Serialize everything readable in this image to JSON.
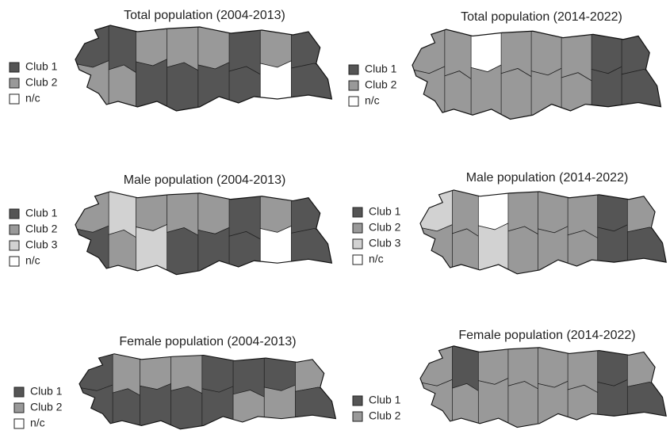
{
  "panels": [
    {
      "title": "Total population (2004-2013)",
      "legend": [
        "Club 1",
        "Club 2",
        "n/c"
      ]
    },
    {
      "title": "Total population (2014-2022)",
      "legend": [
        "Club 1",
        "Club 2",
        "n/c"
      ]
    },
    {
      "title": "Male population (2004-2013)",
      "legend": [
        "Club 1",
        "Club 2",
        "Club 3",
        "n/c"
      ]
    },
    {
      "title": "Male population (2014-2022)",
      "legend": [
        "Club 1",
        "Club 2",
        "Club 3",
        "n/c"
      ]
    },
    {
      "title": "Female population (2004-2013)",
      "legend": [
        "Club 1",
        "Club 2",
        "n/c"
      ]
    },
    {
      "title": "Female population (2014-2022)",
      "legend": [
        "Club 1",
        "Club 2"
      ]
    }
  ]
}
